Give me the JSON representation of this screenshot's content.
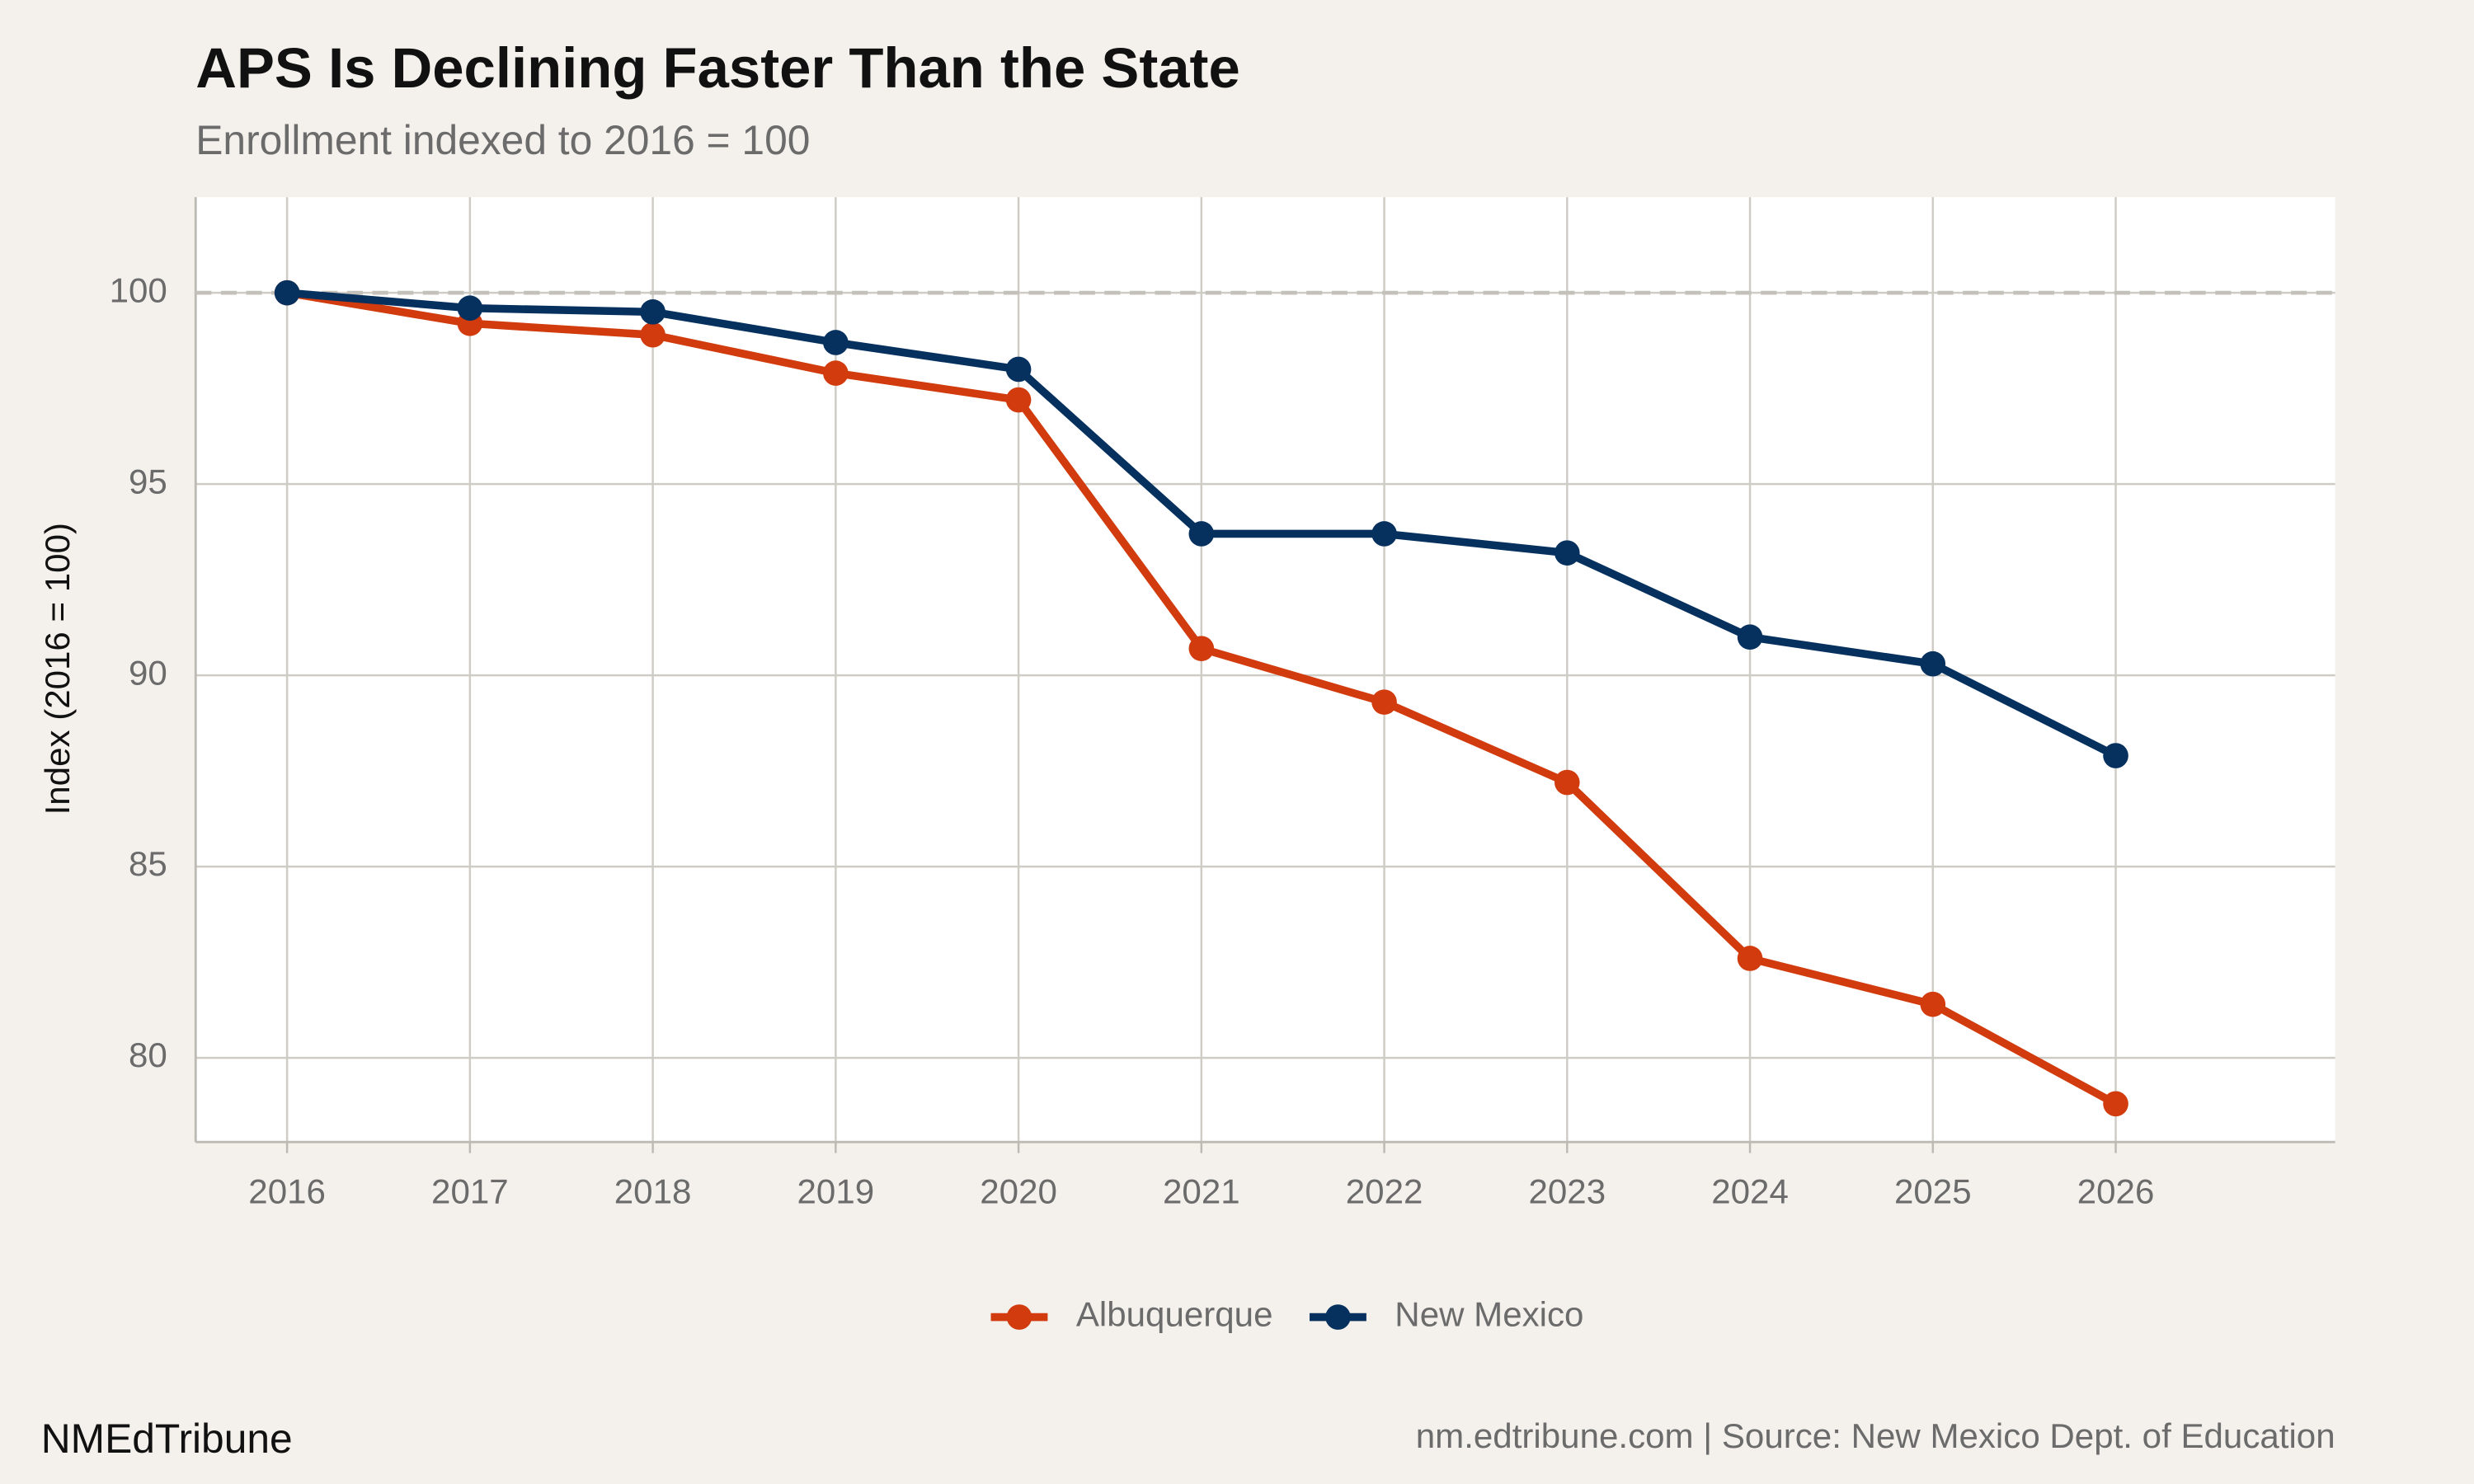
{
  "chart_data": {
    "type": "line",
    "title": "APS Is Declining Faster Than the State",
    "subtitle": "Enrollment indexed to 2016 = 100",
    "y_label": "Index (2016 = 100)",
    "x": [
      2016,
      2017,
      2018,
      2019,
      2020,
      2021,
      2022,
      2023,
      2024,
      2025,
      2026
    ],
    "series": [
      {
        "name": "Albuquerque",
        "color": "#d13b0d",
        "values": [
          100,
          99.2,
          98.9,
          97.9,
          97.2,
          90.7,
          89.3,
          87.2,
          82.6,
          81.4,
          78.8
        ]
      },
      {
        "name": "New Mexico",
        "color": "#06315e",
        "values": [
          100,
          99.6,
          99.5,
          98.7,
          98.0,
          93.7,
          93.7,
          93.2,
          91.0,
          90.3,
          87.9
        ]
      }
    ],
    "reference_line": 100,
    "xlim": [
      2015.5,
      2027.2
    ],
    "xticks": [
      2016,
      2017,
      2018,
      2019,
      2020,
      2021,
      2022,
      2023,
      2024,
      2025,
      2026
    ],
    "ylim": [
      77.8,
      102.5
    ],
    "yticks": [
      80,
      85,
      90,
      95,
      100
    ],
    "grid": true,
    "legend_position": "bottom",
    "source_left": "NMEdTribune",
    "source_right": "nm.edtribune.com | Source: New Mexico Dept. of Education"
  }
}
